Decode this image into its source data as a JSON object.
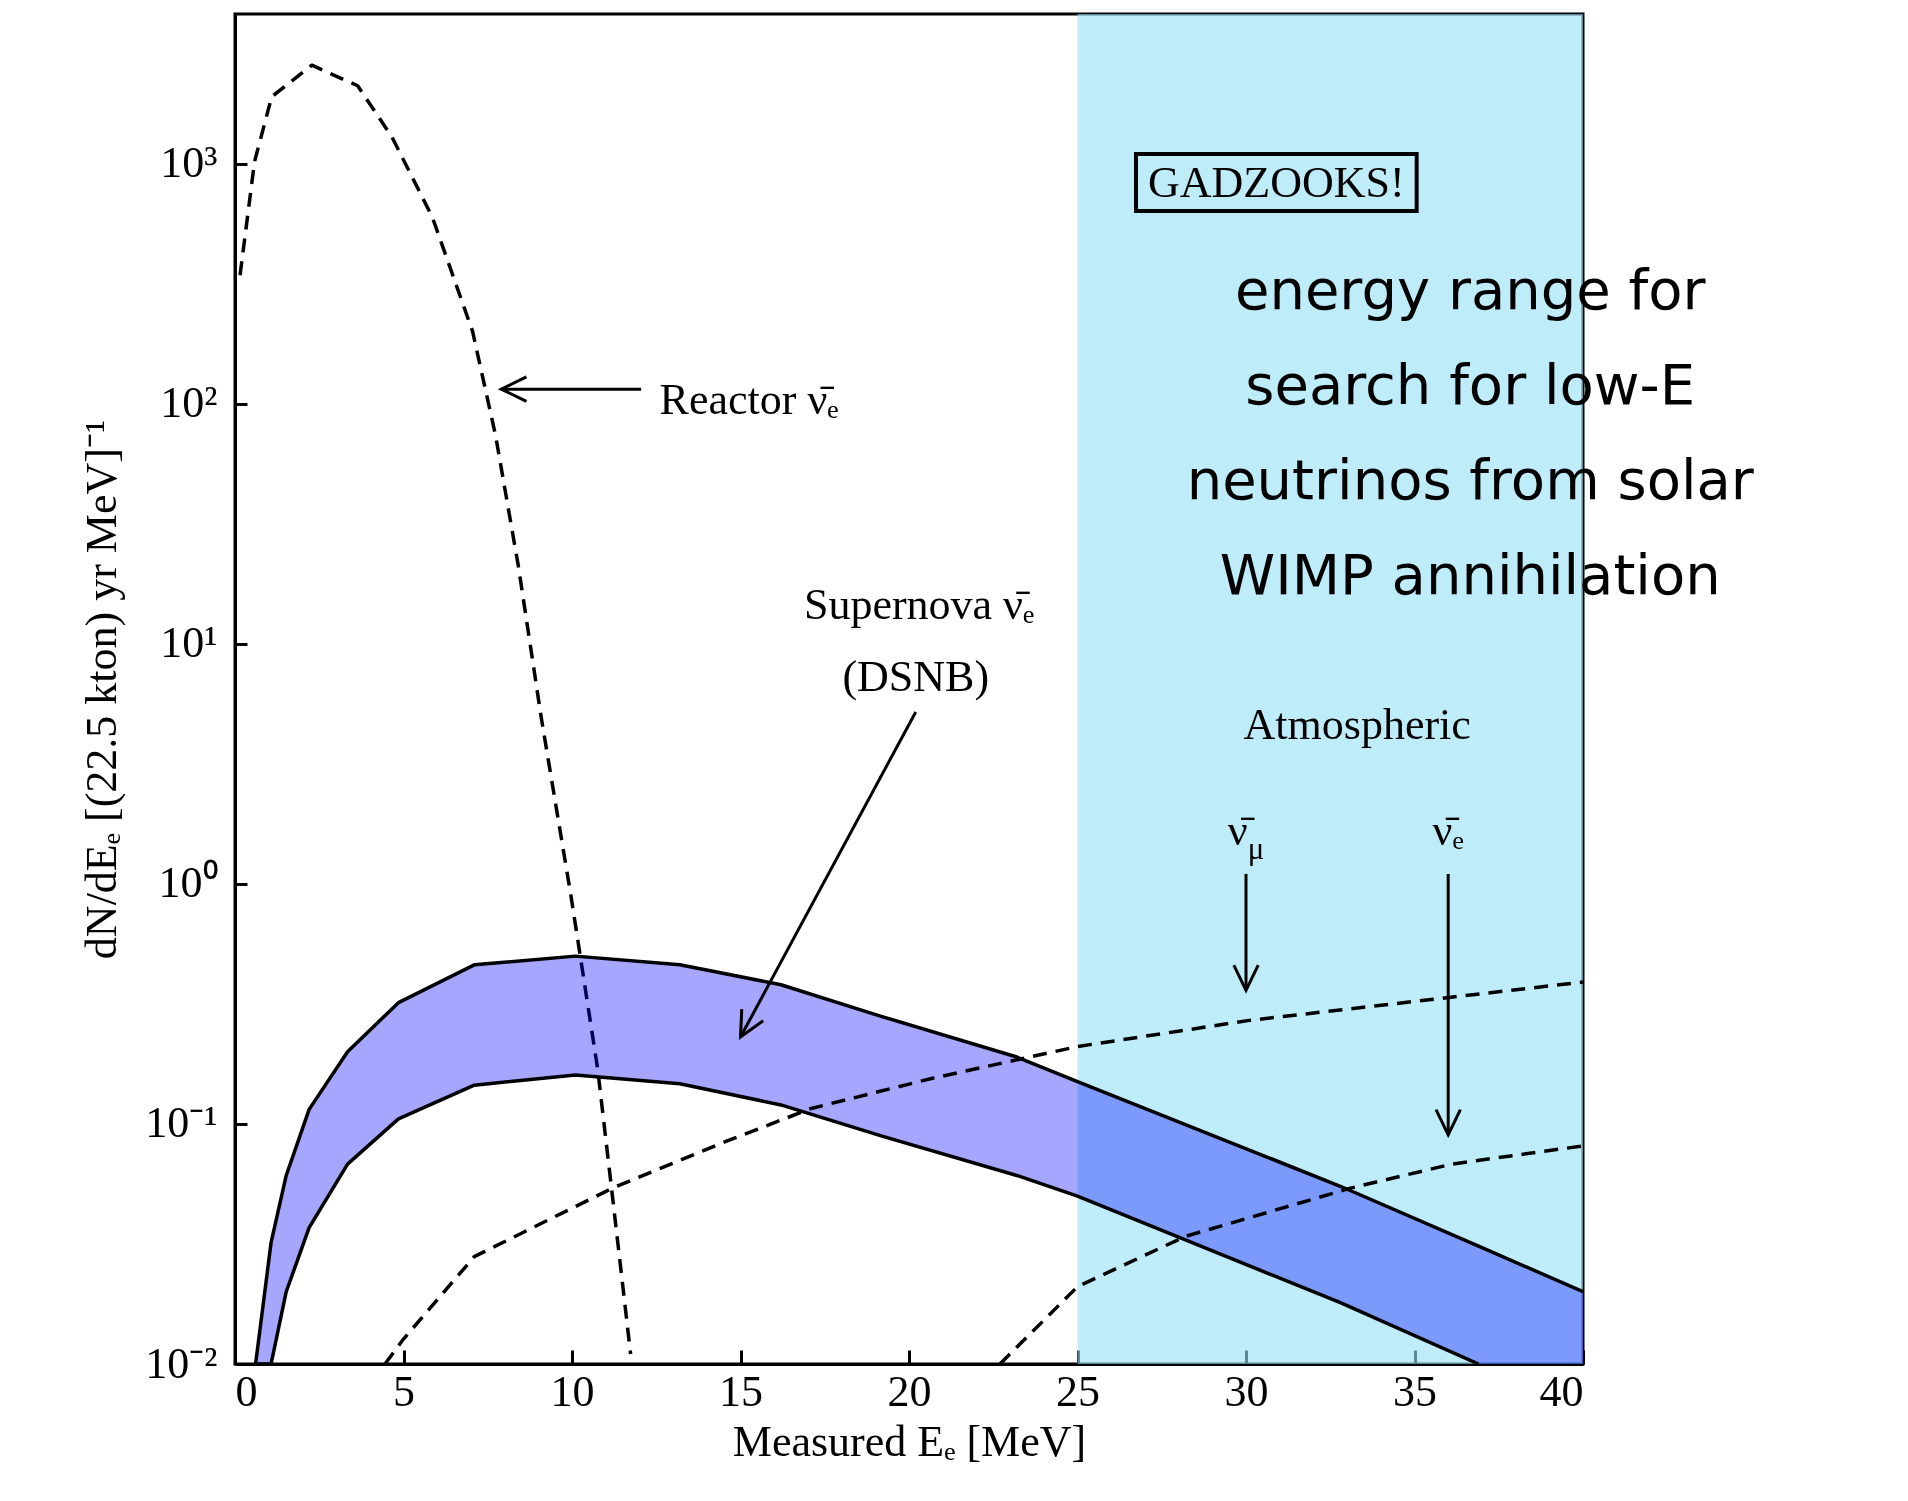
{
  "chart_data": {
    "type": "line",
    "xlabel": "Measured Eₑ  [MeV]",
    "ylabel": "dN/dEₑ  [(22.5 kton) yr MeV]⁻¹",
    "log": "y",
    "xlim": [
      0,
      40
    ],
    "xticks": [
      0,
      5,
      10,
      15,
      20,
      25,
      30,
      35,
      40
    ],
    "ylim": [
      0.01,
      4200
    ],
    "yticks": [
      {
        "value": 0.01,
        "label": "10⁻²"
      },
      {
        "value": 0.1,
        "label": "10⁻¹"
      },
      {
        "value": 1,
        "label": "10⁰"
      },
      {
        "value": 10,
        "label": "10¹"
      },
      {
        "value": 100,
        "label": "10²"
      },
      {
        "value": 1000,
        "label": "10³"
      }
    ],
    "series": [
      {
        "line_style": "dashed",
        "color": "#000000",
        "x": [
          0.15,
          0.58,
          1.09,
          2.28,
          3.64,
          4.66,
          5.86,
          7.05,
          7.73,
          8.41,
          9.09,
          9.97,
          10.76,
          11.2,
          11.74
        ],
        "values": [
          343,
          1020,
          1900,
          2570,
          2110,
          1290,
          596,
          200,
          74,
          21,
          4.9,
          0.89,
          0.17,
          0.05,
          0.011
        ]
      },
      {
        "line_style": "solid",
        "color": "#000000",
        "x": [
          0.61,
          1.07,
          1.52,
          2.2,
          3.34,
          4.85,
          7.1,
          10.1,
          13.2,
          16.2,
          19.2,
          23.2,
          25,
          32.8,
          36.9,
          40
        ],
        "values": [
          0.01,
          0.032,
          0.061,
          0.115,
          0.2,
          0.32,
          0.46,
          0.5,
          0.46,
          0.38,
          0.28,
          0.19,
          0.15,
          0.055,
          0.031,
          0.02
        ],
        "upper": [
          0.01,
          0.032,
          0.061,
          0.115,
          0.2,
          0.32,
          0.46,
          0.5,
          0.46,
          0.38,
          0.28,
          0.19,
          0.15,
          0.055,
          0.031,
          0.02
        ],
        "lower": [
          0.01,
          0.01,
          0.02,
          0.037,
          0.068,
          0.105,
          0.145,
          0.16,
          0.147,
          0.12,
          0.089,
          0.061,
          0.05,
          0.018,
          0.01,
          0.01
        ]
      },
      {
        "line_style": "solid",
        "color": "#000000",
        "x": [
          0.61,
          1.07,
          1.52,
          2.2,
          3.34,
          4.85,
          7.1,
          10.1,
          13.2,
          16.2,
          19.2,
          23.2,
          25,
          32.8,
          36.9
        ],
        "values": [
          0.01,
          0.01,
          0.02,
          0.037,
          0.068,
          0.105,
          0.145,
          0.16,
          0.147,
          0.12,
          0.089,
          0.061,
          0.05,
          0.018,
          0.01
        ]
      },
      {
        "line_style": "dashed",
        "color": "#000000",
        "x": [
          4.45,
          5,
          7.1,
          11.2,
          14.7,
          17.1,
          20.7,
          25,
          30.1,
          40
        ],
        "values": [
          0.01,
          0.0127,
          0.028,
          0.054,
          0.086,
          0.116,
          0.155,
          0.21,
          0.27,
          0.39
        ]
      },
      {
        "line_style": "dashed",
        "color": "#000000",
        "x": [
          22.7,
          25,
          28.2,
          33.1,
          36.1,
          40
        ],
        "values": [
          0.01,
          0.021,
          0.034,
          0.054,
          0.068,
          0.081
        ]
      }
    ],
    "bands": [
      {
        "axis": "x",
        "from": 25,
        "to": 40,
        "label": "energy range for search for low-E neutrinos from solar WIMP annihilation",
        "color": "#94e2f6"
      }
    ],
    "annotations": [
      "Reactor ν̄ₑ",
      "Supernova ν̄ₑ",
      "(DSNB)",
      "Atmospheric",
      "ν̄$_{μ}$",
      "ν̄ₑ",
      "GADZOOKS!"
    ]
  }
}
